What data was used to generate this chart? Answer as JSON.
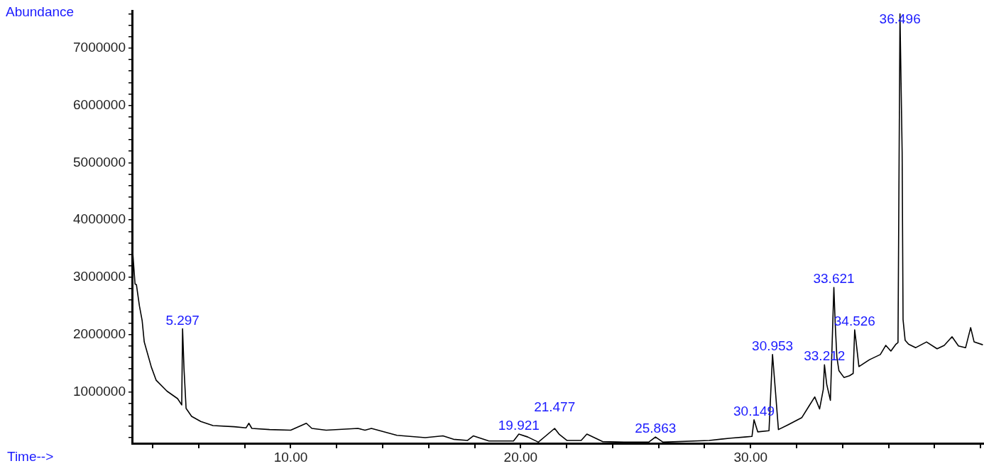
{
  "chart_data": {
    "type": "line",
    "xlabel": "Time-->",
    "ylabel": "Abundance",
    "color": "#000000",
    "marker": "none",
    "grid": false,
    "legend": false,
    "x": [
      3.11,
      3.23,
      3.29,
      3.42,
      3.54,
      3.63,
      3.94,
      4.15,
      4.62,
      5.08,
      5.26,
      5.297,
      5.36,
      5.45,
      5.69,
      6.09,
      6.62,
      7.54,
      8.06,
      8.18,
      8.31,
      9.08,
      10.0,
      10.68,
      10.92,
      11.54,
      12.92,
      13.23,
      13.51,
      14.62,
      15.85,
      16.62,
      17.08,
      17.69,
      17.94,
      18.62,
      19.69,
      19.921,
      20.31,
      20.77,
      21.477,
      21.67,
      22.01,
      22.63,
      22.88,
      23.56,
      24.49,
      25.57,
      25.863,
      26.19,
      28.2,
      29.13,
      29.75,
      30.06,
      30.149,
      30.31,
      30.8,
      30.953,
      31.08,
      31.21,
      31.61,
      32.23,
      32.54,
      32.79,
      33.0,
      33.16,
      33.212,
      33.31,
      33.47,
      33.621,
      33.68,
      33.75,
      33.84,
      34.06,
      34.3,
      34.46,
      34.526,
      34.58,
      34.71,
      35.17,
      35.64,
      35.88,
      36.1,
      36.32,
      36.41,
      36.496,
      36.59,
      36.63,
      36.72,
      36.87,
      37.18,
      37.65,
      38.11,
      38.42,
      38.76,
      39.04,
      39.35,
      39.57,
      39.72,
      40.1
    ],
    "values": [
      3550000,
      2880000,
      2870000,
      2500000,
      2240000,
      1870000,
      1430000,
      1200000,
      1010000,
      880000,
      770000,
      2100000,
      1400000,
      710000,
      570000,
      480000,
      410000,
      390000,
      370000,
      450000,
      360000,
      340000,
      330000,
      450000,
      360000,
      330000,
      360000,
      330000,
      360000,
      240000,
      200000,
      230000,
      170000,
      150000,
      230000,
      140000,
      140000,
      260000,
      210000,
      120000,
      360000,
      260000,
      150000,
      150000,
      260000,
      130000,
      120000,
      120000,
      210000,
      120000,
      150000,
      190000,
      210000,
      220000,
      510000,
      300000,
      320000,
      1650000,
      1010000,
      340000,
      420000,
      550000,
      750000,
      910000,
      700000,
      1040000,
      1470000,
      1130000,
      850000,
      2820000,
      2180000,
      1610000,
      1370000,
      1250000,
      1280000,
      1320000,
      2080000,
      1900000,
      1440000,
      1560000,
      1650000,
      1810000,
      1710000,
      1830000,
      1860000,
      7600000,
      5190000,
      2260000,
      1900000,
      1830000,
      1770000,
      1870000,
      1750000,
      1810000,
      1960000,
      1800000,
      1770000,
      2120000,
      1870000,
      1820000
    ],
    "xlim": [
      3.1,
      40.15
    ],
    "xticks": [
      {
        "value": 4,
        "label": null
      },
      {
        "value": 6,
        "label": null
      },
      {
        "value": 8,
        "label": null
      },
      {
        "value": 10,
        "label": "10.00"
      },
      {
        "value": 12,
        "label": null
      },
      {
        "value": 14,
        "label": null
      },
      {
        "value": 16,
        "label": null
      },
      {
        "value": 18,
        "label": null
      },
      {
        "value": 20,
        "label": "20.00"
      },
      {
        "value": 22,
        "label": null
      },
      {
        "value": 24,
        "label": null
      },
      {
        "value": 26,
        "label": null
      },
      {
        "value": 28,
        "label": null
      },
      {
        "value": 30,
        "label": "30.00"
      },
      {
        "value": 32,
        "label": null
      },
      {
        "value": 34,
        "label": null
      },
      {
        "value": 36,
        "label": null
      },
      {
        "value": 38,
        "label": null
      },
      {
        "value": 40,
        "label": null
      }
    ],
    "ylim": [
      100000,
      7650000
    ],
    "yticks": [
      {
        "value": 200000,
        "label": null
      },
      {
        "value": 400000,
        "label": null
      },
      {
        "value": 600000,
        "label": null
      },
      {
        "value": 800000,
        "label": null
      },
      1000000,
      {
        "value": 1200000,
        "label": null
      },
      {
        "value": 1400000,
        "label": null
      },
      {
        "value": 1600000,
        "label": null
      },
      {
        "value": 1800000,
        "label": null
      },
      2000000,
      {
        "value": 2200000,
        "label": null
      },
      {
        "value": 2400000,
        "label": null
      },
      {
        "value": 2600000,
        "label": null
      },
      {
        "value": 2800000,
        "label": null
      },
      3000000,
      {
        "value": 3200000,
        "label": null
      },
      {
        "value": 3400000,
        "label": null
      },
      {
        "value": 3600000,
        "label": null
      },
      {
        "value": 3800000,
        "label": null
      },
      4000000,
      {
        "value": 4200000,
        "label": null
      },
      {
        "value": 4400000,
        "label": null
      },
      {
        "value": 4600000,
        "label": null
      },
      {
        "value": 4800000,
        "label": null
      },
      5000000,
      {
        "value": 5200000,
        "label": null
      },
      {
        "value": 5400000,
        "label": null
      },
      {
        "value": 5600000,
        "label": null
      },
      {
        "value": 5800000,
        "label": null
      },
      6000000,
      {
        "value": 6200000,
        "label": null
      },
      {
        "value": 6400000,
        "label": null
      },
      {
        "value": 6600000,
        "label": null
      },
      {
        "value": 6800000,
        "label": null
      },
      7000000,
      {
        "value": 7200000,
        "label": null
      },
      {
        "value": 7400000,
        "label": null
      },
      {
        "value": 7600000,
        "label": null
      }
    ],
    "annotations": [
      {
        "text": "5.297",
        "x": 5.297,
        "y": 2100000
      },
      {
        "text": "19.921",
        "x": 19.921,
        "y": 260000
      },
      {
        "text": "21.477",
        "x": 21.477,
        "y": 360000
      },
      {
        "text": "25.863",
        "x": 25.863,
        "y": 210000
      },
      {
        "text": "30.149",
        "x": 30.149,
        "y": 510000
      },
      {
        "text": "30.953",
        "x": 30.953,
        "y": 1650000
      },
      {
        "text": "33.212",
        "x": 33.212,
        "y": 1470000
      },
      {
        "text": "33.621",
        "x": 33.621,
        "y": 2820000
      },
      {
        "text": "34.526",
        "x": 34.526,
        "y": 2080000
      },
      {
        "text": "36.496",
        "x": 36.496,
        "y": 7600000
      }
    ]
  }
}
